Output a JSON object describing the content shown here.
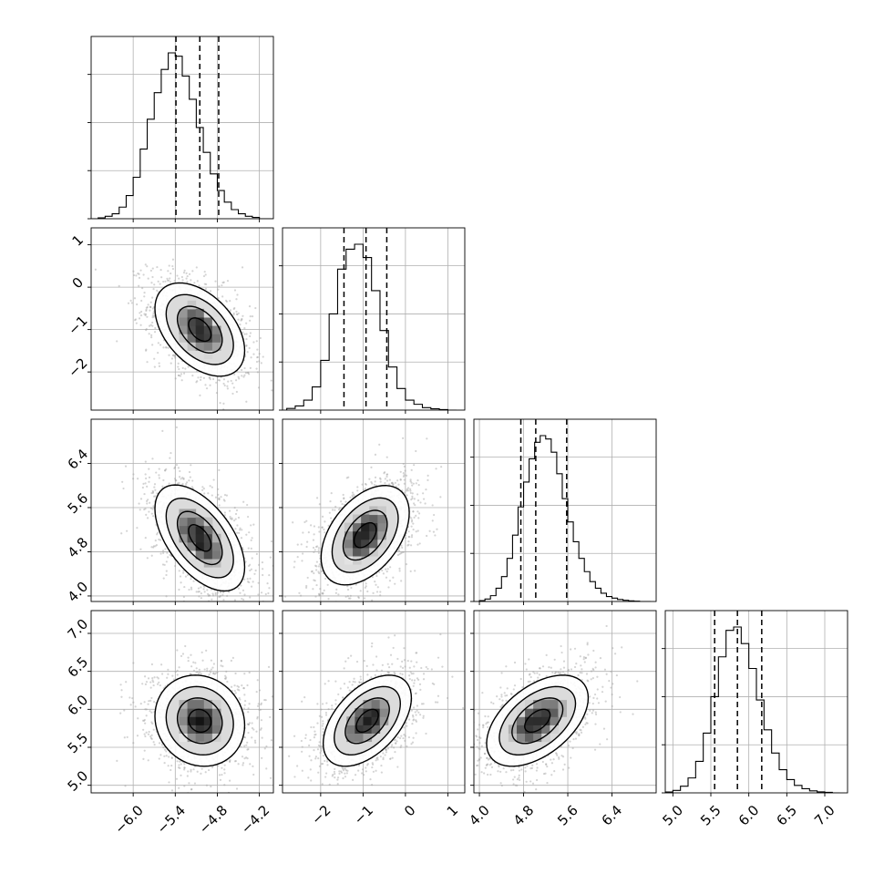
{
  "chart_data": {
    "type": "corner",
    "title": "",
    "grid": true,
    "colors": {
      "hist": "#000000",
      "scatter": "#a0a0a0",
      "density": "#000000",
      "contour": "#000000",
      "grid": "#b0b0b0",
      "frame": "#000000"
    },
    "parameters": [
      {
        "index": 0,
        "range": [
          -6.6,
          -4.0
        ],
        "ticks": [
          -6.0,
          -5.4,
          -4.8,
          -4.2
        ],
        "tick_labels": [
          "−6.0",
          "−5.4",
          "−4.8",
          "−4.2"
        ],
        "quantiles": [
          -5.39,
          -5.05,
          -4.78
        ],
        "hist_bins": [
          -6.6,
          -6.5,
          -6.4,
          -6.3,
          -6.2,
          -6.1,
          -6.0,
          -5.9,
          -5.8,
          -5.7,
          -5.6,
          -5.5,
          -5.4,
          -5.3,
          -5.2,
          -5.1,
          -5.0,
          -4.9,
          -4.8,
          -4.7,
          -4.6,
          -4.5,
          -4.4,
          -4.3,
          -4.2,
          -4.1,
          -4.0
        ],
        "hist_counts": [
          0.0,
          0.005,
          0.015,
          0.03,
          0.07,
          0.14,
          0.25,
          0.42,
          0.6,
          0.76,
          0.9,
          1.0,
          0.98,
          0.86,
          0.72,
          0.55,
          0.4,
          0.27,
          0.17,
          0.1,
          0.055,
          0.03,
          0.015,
          0.008,
          0.0,
          0.0
        ]
      },
      {
        "index": 1,
        "range": [
          -2.9,
          1.4
        ],
        "ticks": [
          -2,
          -1,
          0,
          1
        ],
        "tick_labels": [
          "−2",
          "−1",
          "0",
          "1"
        ],
        "quantiles": [
          -1.45,
          -0.93,
          -0.44
        ],
        "hist_bins": [
          -2.8,
          -2.6,
          -2.4,
          -2.2,
          -2.0,
          -1.8,
          -1.6,
          -1.4,
          -1.2,
          -1.0,
          -0.8,
          -0.6,
          -0.4,
          -0.2,
          0.0,
          0.2,
          0.4,
          0.6,
          0.8,
          1.0,
          1.2
        ],
        "hist_counts": [
          0.01,
          0.025,
          0.06,
          0.14,
          0.3,
          0.58,
          0.85,
          0.97,
          1.0,
          0.92,
          0.72,
          0.48,
          0.26,
          0.13,
          0.06,
          0.035,
          0.015,
          0.008,
          0.003,
          0.0
        ]
      },
      {
        "index": 2,
        "range": [
          3.9,
          7.2
        ],
        "ticks": [
          4.0,
          4.8,
          5.6,
          6.4
        ],
        "tick_labels": [
          "4.0",
          "4.8",
          "5.6",
          "6.4"
        ],
        "quantiles": [
          4.75,
          5.02,
          5.58
        ],
        "hist_bins": [
          3.9,
          4.0,
          4.1,
          4.2,
          4.3,
          4.4,
          4.5,
          4.6,
          4.7,
          4.8,
          4.9,
          5.0,
          5.1,
          5.2,
          5.3,
          5.4,
          5.5,
          5.6,
          5.7,
          5.8,
          5.9,
          6.0,
          6.1,
          6.2,
          6.3,
          6.4,
          6.5,
          6.6,
          6.7,
          6.8,
          6.9,
          7.0,
          7.1
        ],
        "hist_counts": [
          0.0,
          0.005,
          0.015,
          0.035,
          0.08,
          0.15,
          0.26,
          0.4,
          0.57,
          0.72,
          0.86,
          0.96,
          1.0,
          0.98,
          0.9,
          0.77,
          0.62,
          0.48,
          0.36,
          0.26,
          0.18,
          0.12,
          0.08,
          0.05,
          0.03,
          0.02,
          0.012,
          0.007,
          0.004,
          0.002,
          0.0,
          0.0
        ]
      },
      {
        "index": 3,
        "range": [
          4.9,
          7.3
        ],
        "ticks": [
          5.0,
          5.5,
          6.0,
          6.5,
          7.0
        ],
        "tick_labels": [
          "5.0",
          "5.5",
          "6.0",
          "6.5",
          "7.0"
        ],
        "quantiles": [
          5.55,
          5.85,
          6.17
        ],
        "hist_bins": [
          4.9,
          5.0,
          5.1,
          5.2,
          5.3,
          5.4,
          5.5,
          5.6,
          5.7,
          5.8,
          5.9,
          6.0,
          6.1,
          6.2,
          6.3,
          6.4,
          6.5,
          6.6,
          6.7,
          6.8,
          6.9,
          7.0,
          7.1,
          7.2
        ],
        "hist_counts": [
          0.005,
          0.015,
          0.04,
          0.09,
          0.19,
          0.36,
          0.58,
          0.82,
          0.98,
          1.0,
          0.9,
          0.75,
          0.56,
          0.38,
          0.24,
          0.14,
          0.08,
          0.045,
          0.025,
          0.012,
          0.006,
          0.003,
          0.0
        ]
      }
    ],
    "pairs": [
      {
        "x": 0,
        "y": 1,
        "mean": [
          -5.05,
          -1.0
        ],
        "std": [
          0.32,
          0.55
        ],
        "corr": -0.45
      },
      {
        "x": 0,
        "y": 2,
        "mean": [
          -5.05,
          5.05
        ],
        "std": [
          0.32,
          0.48
        ],
        "corr": -0.55
      },
      {
        "x": 1,
        "y": 2,
        "mean": [
          -0.95,
          5.1
        ],
        "std": [
          0.52,
          0.45
        ],
        "corr": 0.45
      },
      {
        "x": 0,
        "y": 3,
        "mean": [
          -5.05,
          5.85
        ],
        "std": [
          0.32,
          0.3
        ],
        "corr": -0.1
      },
      {
        "x": 1,
        "y": 3,
        "mean": [
          -0.9,
          5.85
        ],
        "std": [
          0.52,
          0.3
        ],
        "corr": 0.5
      },
      {
        "x": 2,
        "y": 3,
        "mean": [
          5.05,
          5.85
        ],
        "std": [
          0.46,
          0.3
        ],
        "corr": 0.5
      }
    ],
    "contour_levels_sigma": [
      0.5,
      1.0,
      1.5,
      2.0
    ]
  }
}
